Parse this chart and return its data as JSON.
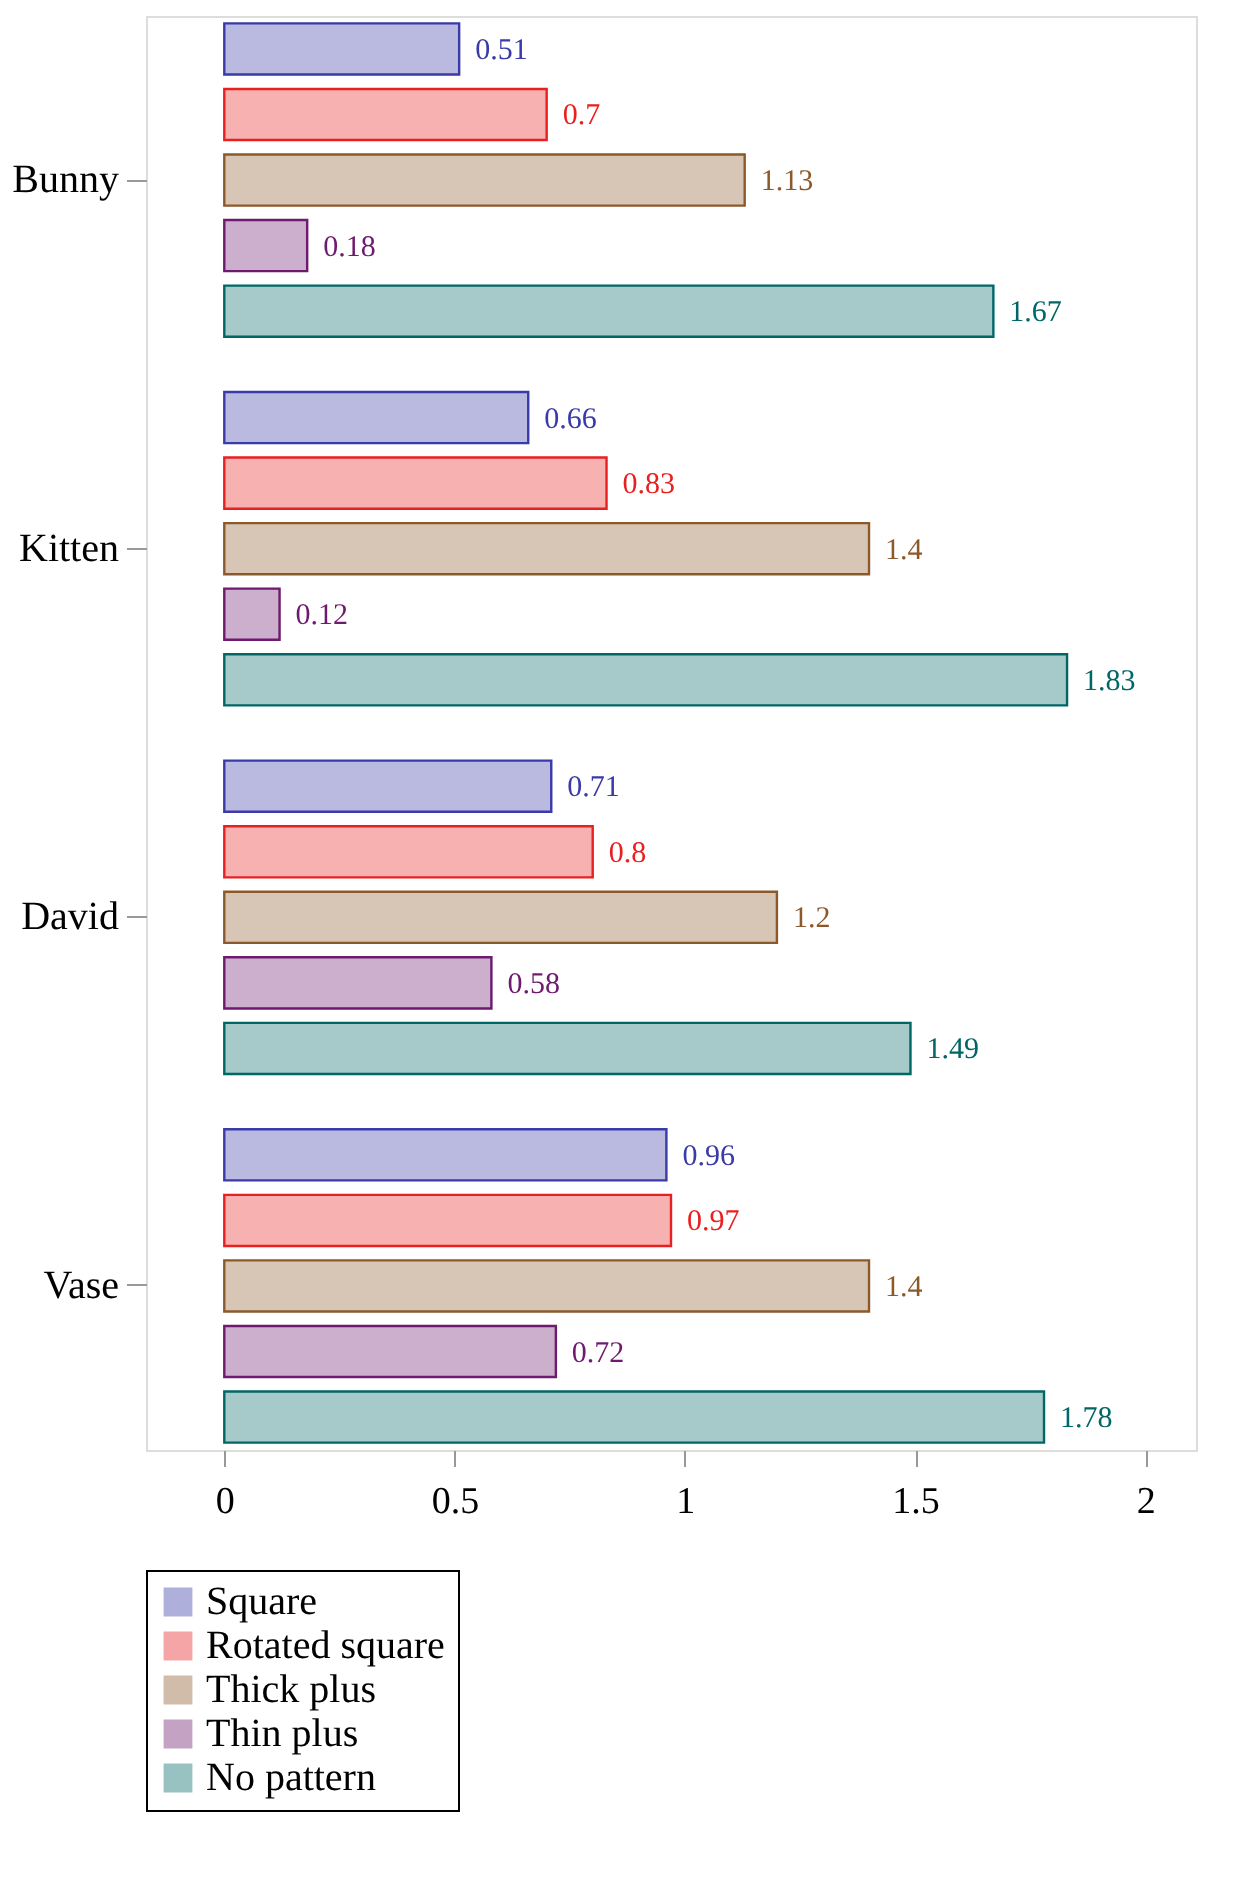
{
  "chart_data": {
    "type": "bar",
    "orientation": "horizontal",
    "categories": [
      "Bunny",
      "Kitten",
      "David",
      "Vase"
    ],
    "series": [
      {
        "name": "Square",
        "color": "#3a3aa8",
        "values": [
          0.51,
          0.66,
          0.71,
          0.96
        ]
      },
      {
        "name": "Rotated square",
        "color": "#e82020",
        "values": [
          0.7,
          0.83,
          0.8,
          0.97
        ]
      },
      {
        "name": "Thick plus",
        "color": "#8c5a2a",
        "values": [
          1.13,
          1.4,
          1.2,
          1.4
        ]
      },
      {
        "name": "Thin plus",
        "color": "#6e1a6e",
        "values": [
          0.18,
          0.12,
          0.58,
          0.72
        ]
      },
      {
        "name": "No pattern",
        "color": "#006666",
        "values": [
          1.67,
          1.83,
          1.49,
          1.78
        ]
      }
    ],
    "xlim": [
      -0.17,
      2.11
    ],
    "xticks": [
      0,
      0.5,
      1,
      1.5,
      2
    ],
    "data_labels": true,
    "grid": false,
    "legend": "bottom"
  }
}
